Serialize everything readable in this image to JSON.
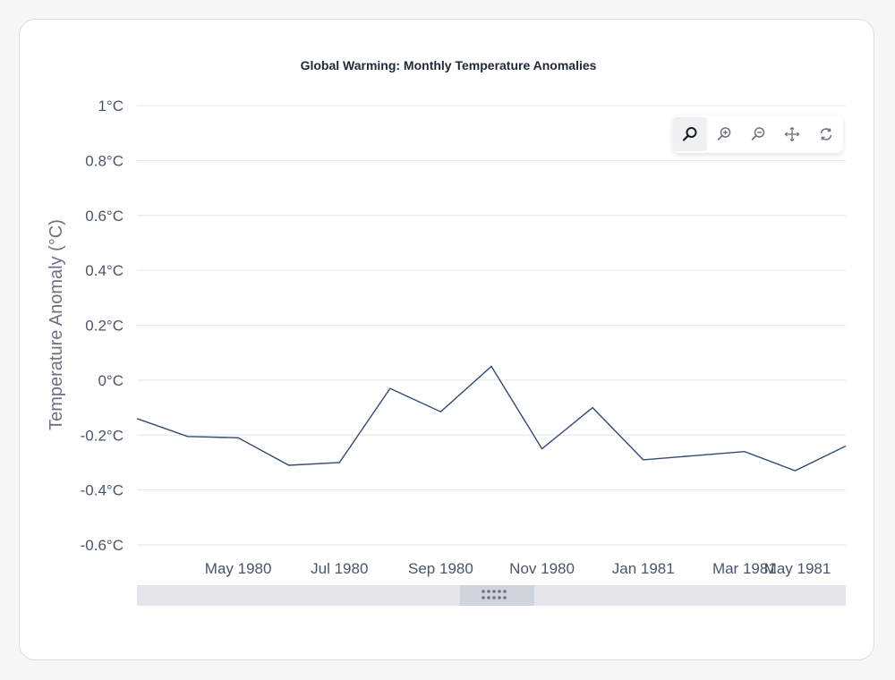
{
  "chart_data": {
    "type": "line",
    "title": "Global Warming: Monthly Temperature Anomalies",
    "ylabel": "Temperature Anomaly (°C)",
    "xlabel": "",
    "y_ticks": [
      "1°C",
      "0.8°C",
      "0.6°C",
      "0.4°C",
      "0.2°C",
      "0°C",
      "-0.2°C",
      "-0.4°C",
      "-0.6°C"
    ],
    "ylim": [
      -0.6,
      1.0
    ],
    "x_ticks": [
      "May 1980",
      "Jul 1980",
      "Sep 1980",
      "Nov 1980",
      "Jan 1981",
      "Mar 1981",
      "May 1981"
    ],
    "grid": true,
    "series": [
      {
        "color": "#334a73",
        "points": [
          {
            "x": "1980-03",
            "y": -0.14
          },
          {
            "x": "1980-04",
            "y": -0.205
          },
          {
            "x": "1980-05",
            "y": -0.21
          },
          {
            "x": "1980-06",
            "y": -0.31
          },
          {
            "x": "1980-07",
            "y": -0.3
          },
          {
            "x": "1980-08",
            "y": -0.03
          },
          {
            "x": "1980-09",
            "y": -0.115
          },
          {
            "x": "1980-10",
            "y": 0.05
          },
          {
            "x": "1980-11",
            "y": -0.25
          },
          {
            "x": "1980-12",
            "y": -0.1
          },
          {
            "x": "1981-01",
            "y": -0.29
          },
          {
            "x": "1981-02",
            "y": -0.275
          },
          {
            "x": "1981-03",
            "y": -0.26
          },
          {
            "x": "1981-04",
            "y": -0.33
          },
          {
            "x": "1981-05",
            "y": -0.24
          }
        ]
      }
    ]
  },
  "toolbar": {
    "tools": [
      {
        "name": "zoom-select-icon",
        "active": true
      },
      {
        "name": "zoom-in-icon",
        "active": false
      },
      {
        "name": "zoom-out-icon",
        "active": false
      },
      {
        "name": "pan-icon",
        "active": false
      },
      {
        "name": "reset-icon",
        "active": false
      }
    ]
  },
  "navigator": {
    "handle_icon": "grip-dots-icon"
  },
  "colors": {
    "line": "#334a73",
    "grid": "#e3e5e9",
    "axis_text": "#4a5568",
    "navigator_bg": "#e4e6eb",
    "navigator_handle": "#cfd4dd"
  }
}
